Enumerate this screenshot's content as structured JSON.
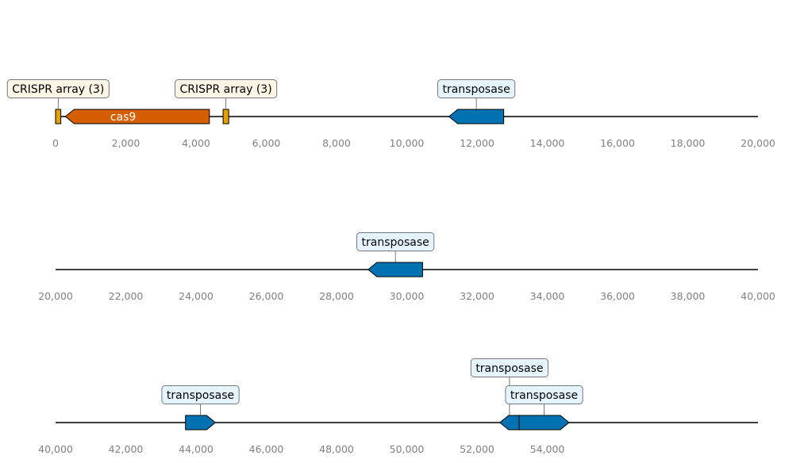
{
  "colors": {
    "cas9": "#d55e00",
    "crispr_array": "#e69f00",
    "transposase": "#0072b2",
    "crispr_label_bg": "#fdf6e6",
    "transposase_label_bg": "#e6f5fd",
    "backbone": "#000000",
    "tick_label": "#808080"
  },
  "tracks": [
    {
      "range": [
        0,
        20000
      ],
      "ticks": [
        "0",
        "2,000",
        "4,000",
        "6,000",
        "8,000",
        "10,000",
        "12,000",
        "14,000",
        "16,000",
        "18,000",
        "20,000"
      ],
      "features": [
        {
          "name": "CRISPR array (3)",
          "type": "crispr_array",
          "start": 0,
          "end": 150,
          "strand": 0,
          "label": "CRISPR array (3)",
          "label_level": 1
        },
        {
          "name": "cas9",
          "type": "cas9",
          "start": 280,
          "end": 4380,
          "strand": -1,
          "inner_label": "cas9"
        },
        {
          "name": "CRISPR array (3)",
          "type": "crispr_array",
          "start": 4770,
          "end": 4930,
          "strand": 0,
          "label": "CRISPR array (3)",
          "label_level": 1
        },
        {
          "name": "transposase",
          "type": "transposase",
          "start": 11200,
          "end": 12760,
          "strand": -1,
          "label": "transposase",
          "label_level": 1
        }
      ]
    },
    {
      "range": [
        20000,
        40000
      ],
      "ticks": [
        "20,000",
        "22,000",
        "24,000",
        "26,000",
        "28,000",
        "30,000",
        "32,000",
        "34,000",
        "36,000",
        "38,000",
        "40,000"
      ],
      "features": [
        {
          "name": "transposase",
          "type": "transposase",
          "start": 28900,
          "end": 30450,
          "strand": -1,
          "label": "transposase",
          "label_level": 1
        }
      ]
    },
    {
      "range": [
        40000,
        60000
      ],
      "ticks": [
        "40,000",
        "42,000",
        "44,000",
        "46,000",
        "48,000",
        "50,000",
        "52,000",
        "54,000"
      ],
      "features": [
        {
          "name": "transposase",
          "type": "transposase",
          "start": 43700,
          "end": 44550,
          "strand": 1,
          "label": "transposase",
          "label_level": 1
        },
        {
          "name": "transposase",
          "type": "transposase",
          "start": 52650,
          "end": 53200,
          "strand": -1,
          "label": "transposase",
          "label_level": 2
        },
        {
          "name": "transposase",
          "type": "transposase",
          "start": 53200,
          "end": 54620,
          "strand": 1,
          "label": "transposase",
          "label_level": 1
        }
      ]
    }
  ]
}
